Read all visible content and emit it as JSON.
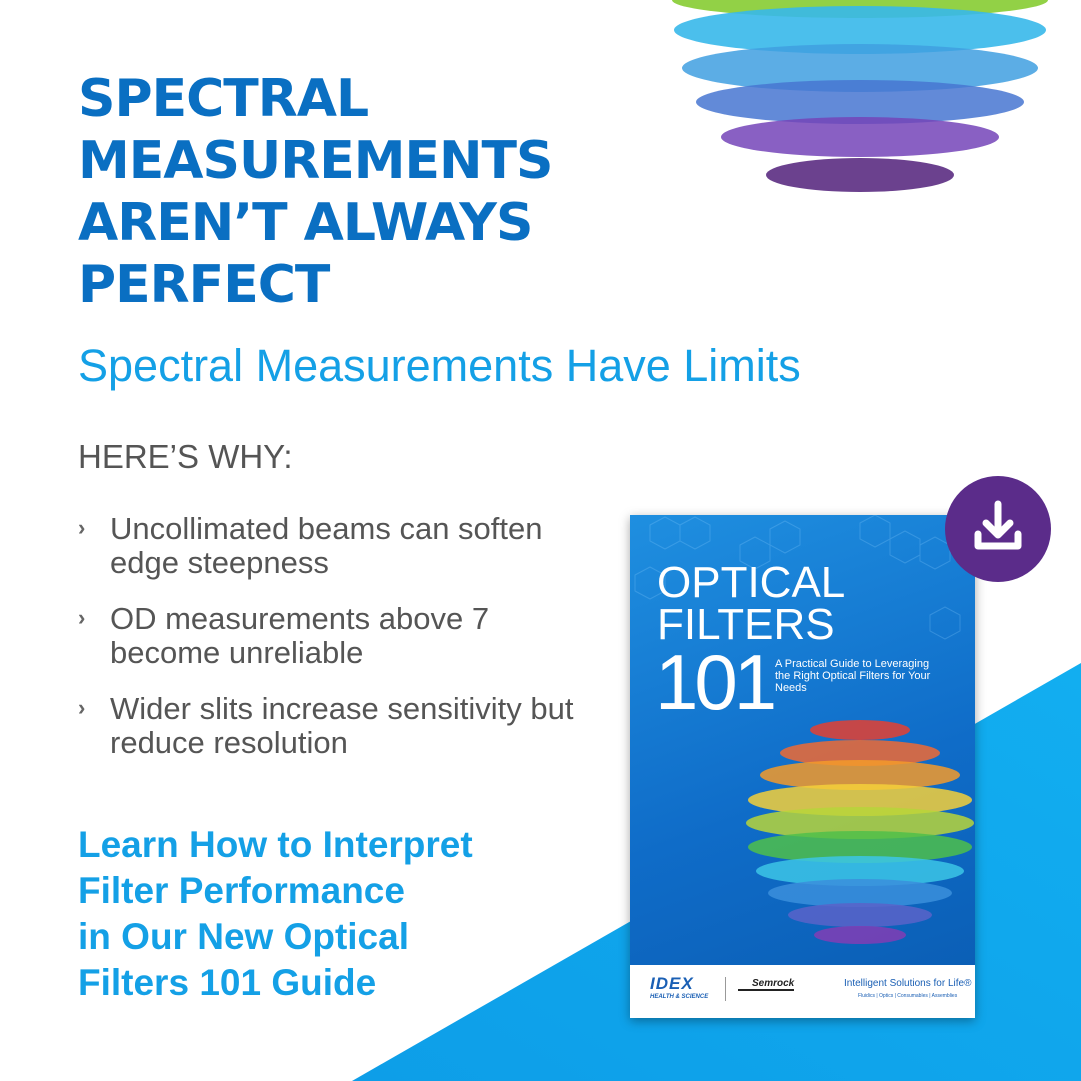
{
  "headline": {
    "lines": [
      "SPECTRAL",
      "MEASUREMENTS",
      "AREN’T ALWAYS",
      "PERFECT"
    ]
  },
  "subheadline": "Spectral Measurements Have Limits",
  "heres_why": "HERE’S WHY:",
  "bullets": [
    {
      "icon": "chevron-right-icon",
      "text": "Uncollimated beams can soften edge steepness"
    },
    {
      "icon": "chevron-right-icon",
      "text": "OD measurements above 7 become unreliable"
    },
    {
      "icon": "chevron-right-icon",
      "text": "Wider slits increase sensitivity but reduce resolution"
    }
  ],
  "cta": {
    "lines": [
      "Learn How to Interpret",
      "Filter Performance",
      "in Our New Optical",
      "Filters 101 Guide"
    ]
  },
  "book": {
    "title_lines": [
      "OPTICAL",
      "FILTERS"
    ],
    "number": "101",
    "subtitle": "A Practical Guide to Leveraging the Right Optical Filters for Your Needs",
    "logo_idex": "IDEX",
    "logo_idex_sub": "HEALTH & SCIENCE",
    "logo_semrock": "Semrock",
    "tagline": "Intelligent Solutions for Life®",
    "tagline_sub": "Fluidics | Optics | Consumables | Assemblies"
  },
  "download_button": {
    "icon": "download-icon"
  },
  "colors": {
    "headline": "#0a6fc2",
    "accent": "#14a0e6",
    "body_text": "#555555",
    "download_button": "#5b2c8a",
    "triangle": "#0aa3ea"
  }
}
